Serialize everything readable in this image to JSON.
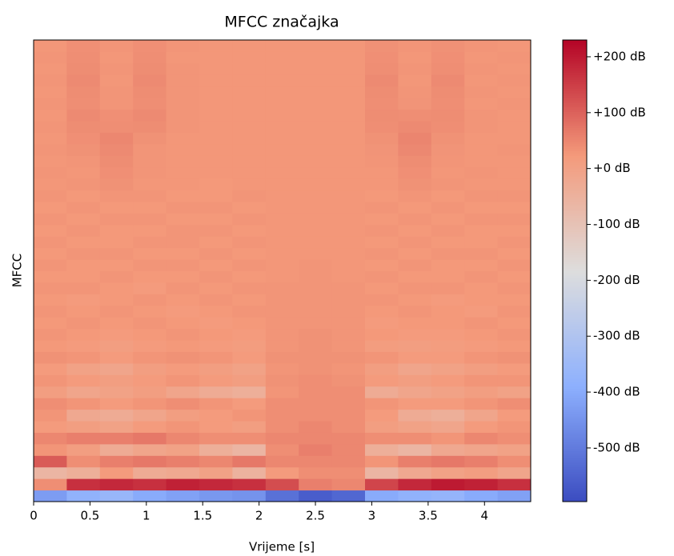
{
  "chart_data": {
    "type": "heatmap",
    "title": "MFCC značajka",
    "xlabel": "Vrijeme [s]",
    "ylabel": "MFCC",
    "colormap": "coolwarm",
    "xlim": [
      0,
      4.41
    ],
    "xticks": [
      0,
      0.5,
      1,
      1.5,
      2,
      2.5,
      3,
      3.5,
      4
    ],
    "clim": [
      -596,
      230
    ],
    "cticks": [
      {
        "value": 200,
        "label": "+200 dB"
      },
      {
        "value": 100,
        "label": "+100 dB"
      },
      {
        "value": 0,
        "label": "+0 dB"
      },
      {
        "value": -100,
        "label": "-100 dB"
      },
      {
        "value": -200,
        "label": "-200 dB"
      },
      {
        "value": -300,
        "label": "-300 dB"
      },
      {
        "value": -400,
        "label": "-400 dB"
      },
      {
        "value": -500,
        "label": "-500 dB"
      }
    ],
    "z": [
      [
        -430,
        -380,
        -360,
        -400,
        -420,
        -440,
        -450,
        -520,
        -560,
        -540,
        -400,
        -380,
        -370,
        -400,
        -420
      ],
      [
        40,
        170,
        180,
        170,
        190,
        180,
        170,
        130,
        60,
        50,
        140,
        180,
        200,
        190,
        170
      ],
      [
        -60,
        -40,
        20,
        -30,
        -20,
        0,
        -50,
        20,
        40,
        40,
        -60,
        -20,
        0,
        10,
        -10
      ],
      [
        110,
        40,
        60,
        70,
        60,
        50,
        70,
        50,
        50,
        50,
        30,
        60,
        70,
        60,
        40
      ],
      [
        30,
        10,
        -30,
        -10,
        0,
        -40,
        -60,
        40,
        60,
        50,
        -40,
        -60,
        -20,
        -10,
        0
      ],
      [
        50,
        60,
        60,
        70,
        50,
        40,
        40,
        50,
        50,
        50,
        40,
        40,
        30,
        50,
        40
      ],
      [
        20,
        10,
        0,
        20,
        30,
        20,
        10,
        40,
        50,
        40,
        10,
        0,
        -10,
        20,
        30
      ],
      [
        30,
        -20,
        -30,
        -10,
        10,
        20,
        30,
        40,
        40,
        40,
        20,
        -30,
        -40,
        -10,
        20
      ],
      [
        40,
        30,
        20,
        30,
        40,
        30,
        20,
        40,
        40,
        40,
        30,
        20,
        20,
        30,
        40
      ],
      [
        10,
        -10,
        0,
        10,
        -10,
        -30,
        -40,
        30,
        40,
        40,
        -30,
        -10,
        0,
        10,
        0
      ],
      [
        30,
        20,
        10,
        20,
        30,
        20,
        10,
        35,
        40,
        35,
        20,
        10,
        20,
        30,
        30
      ],
      [
        20,
        0,
        -10,
        10,
        20,
        10,
        0,
        30,
        35,
        30,
        10,
        -10,
        0,
        10,
        20
      ],
      [
        35,
        30,
        20,
        30,
        35,
        30,
        20,
        35,
        35,
        35,
        30,
        20,
        20,
        30,
        35
      ],
      [
        25,
        20,
        10,
        20,
        25,
        20,
        15,
        30,
        35,
        30,
        15,
        10,
        15,
        20,
        25
      ],
      [
        30,
        25,
        20,
        25,
        30,
        25,
        20,
        30,
        35,
        30,
        25,
        20,
        20,
        25,
        30
      ],
      [
        25,
        30,
        25,
        30,
        25,
        20,
        25,
        30,
        30,
        30,
        20,
        25,
        25,
        30,
        25
      ],
      [
        30,
        25,
        30,
        25,
        20,
        25,
        30,
        30,
        30,
        30,
        25,
        30,
        25,
        20,
        30
      ],
      [
        25,
        20,
        25,
        30,
        25,
        30,
        25,
        30,
        30,
        30,
        30,
        25,
        20,
        25,
        25
      ],
      [
        30,
        30,
        25,
        20,
        30,
        25,
        30,
        30,
        30,
        30,
        25,
        30,
        30,
        25,
        30
      ],
      [
        25,
        25,
        30,
        25,
        25,
        30,
        25,
        28,
        30,
        28,
        30,
        25,
        25,
        30,
        25
      ],
      [
        30,
        25,
        25,
        30,
        30,
        25,
        30,
        28,
        30,
        28,
        25,
        30,
        25,
        25,
        30
      ],
      [
        25,
        30,
        30,
        25,
        25,
        30,
        25,
        28,
        28,
        28,
        30,
        25,
        30,
        30,
        25
      ],
      [
        30,
        25,
        25,
        30,
        30,
        25,
        30,
        28,
        28,
        28,
        25,
        30,
        25,
        25,
        30
      ],
      [
        25,
        30,
        25,
        25,
        30,
        30,
        25,
        28,
        28,
        28,
        30,
        25,
        30,
        25,
        25
      ],
      [
        30,
        25,
        30,
        30,
        25,
        25,
        30,
        28,
        28,
        28,
        25,
        30,
        25,
        30,
        30
      ],
      [
        25,
        30,
        25,
        25,
        30,
        30,
        25,
        28,
        28,
        28,
        30,
        25,
        30,
        25,
        25
      ],
      [
        30,
        25,
        30,
        30,
        25,
        25,
        30,
        28,
        28,
        28,
        25,
        30,
        25,
        30,
        30
      ],
      [
        28,
        30,
        35,
        28,
        28,
        25,
        28,
        28,
        28,
        28,
        28,
        35,
        30,
        28,
        28
      ],
      [
        30,
        28,
        38,
        30,
        28,
        28,
        28,
        28,
        28,
        28,
        28,
        38,
        28,
        30,
        28
      ],
      [
        28,
        30,
        42,
        30,
        28,
        28,
        28,
        28,
        28,
        28,
        30,
        42,
        30,
        28,
        28
      ],
      [
        30,
        35,
        45,
        30,
        28,
        28,
        28,
        28,
        28,
        28,
        32,
        48,
        32,
        28,
        30
      ],
      [
        28,
        38,
        50,
        35,
        28,
        28,
        28,
        28,
        28,
        28,
        35,
        52,
        35,
        28,
        28
      ],
      [
        30,
        42,
        40,
        42,
        30,
        28,
        28,
        28,
        28,
        28,
        40,
        45,
        40,
        30,
        28
      ],
      [
        28,
        45,
        38,
        45,
        30,
        28,
        28,
        28,
        28,
        28,
        42,
        40,
        42,
        30,
        28
      ],
      [
        30,
        40,
        30,
        40,
        30,
        28,
        28,
        28,
        28,
        28,
        40,
        32,
        40,
        28,
        30
      ],
      [
        28,
        42,
        30,
        42,
        30,
        28,
        28,
        28,
        28,
        28,
        42,
        30,
        42,
        30,
        28
      ],
      [
        30,
        45,
        28,
        45,
        30,
        28,
        28,
        28,
        28,
        28,
        45,
        28,
        45,
        28,
        30
      ],
      [
        28,
        42,
        30,
        42,
        30,
        28,
        28,
        28,
        28,
        28,
        40,
        30,
        40,
        30,
        28
      ],
      [
        30,
        40,
        28,
        40,
        28,
        28,
        28,
        28,
        28,
        28,
        38,
        28,
        38,
        28,
        30
      ],
      [
        28,
        38,
        30,
        38,
        30,
        28,
        28,
        28,
        28,
        28,
        36,
        30,
        36,
        30,
        28
      ]
    ]
  }
}
